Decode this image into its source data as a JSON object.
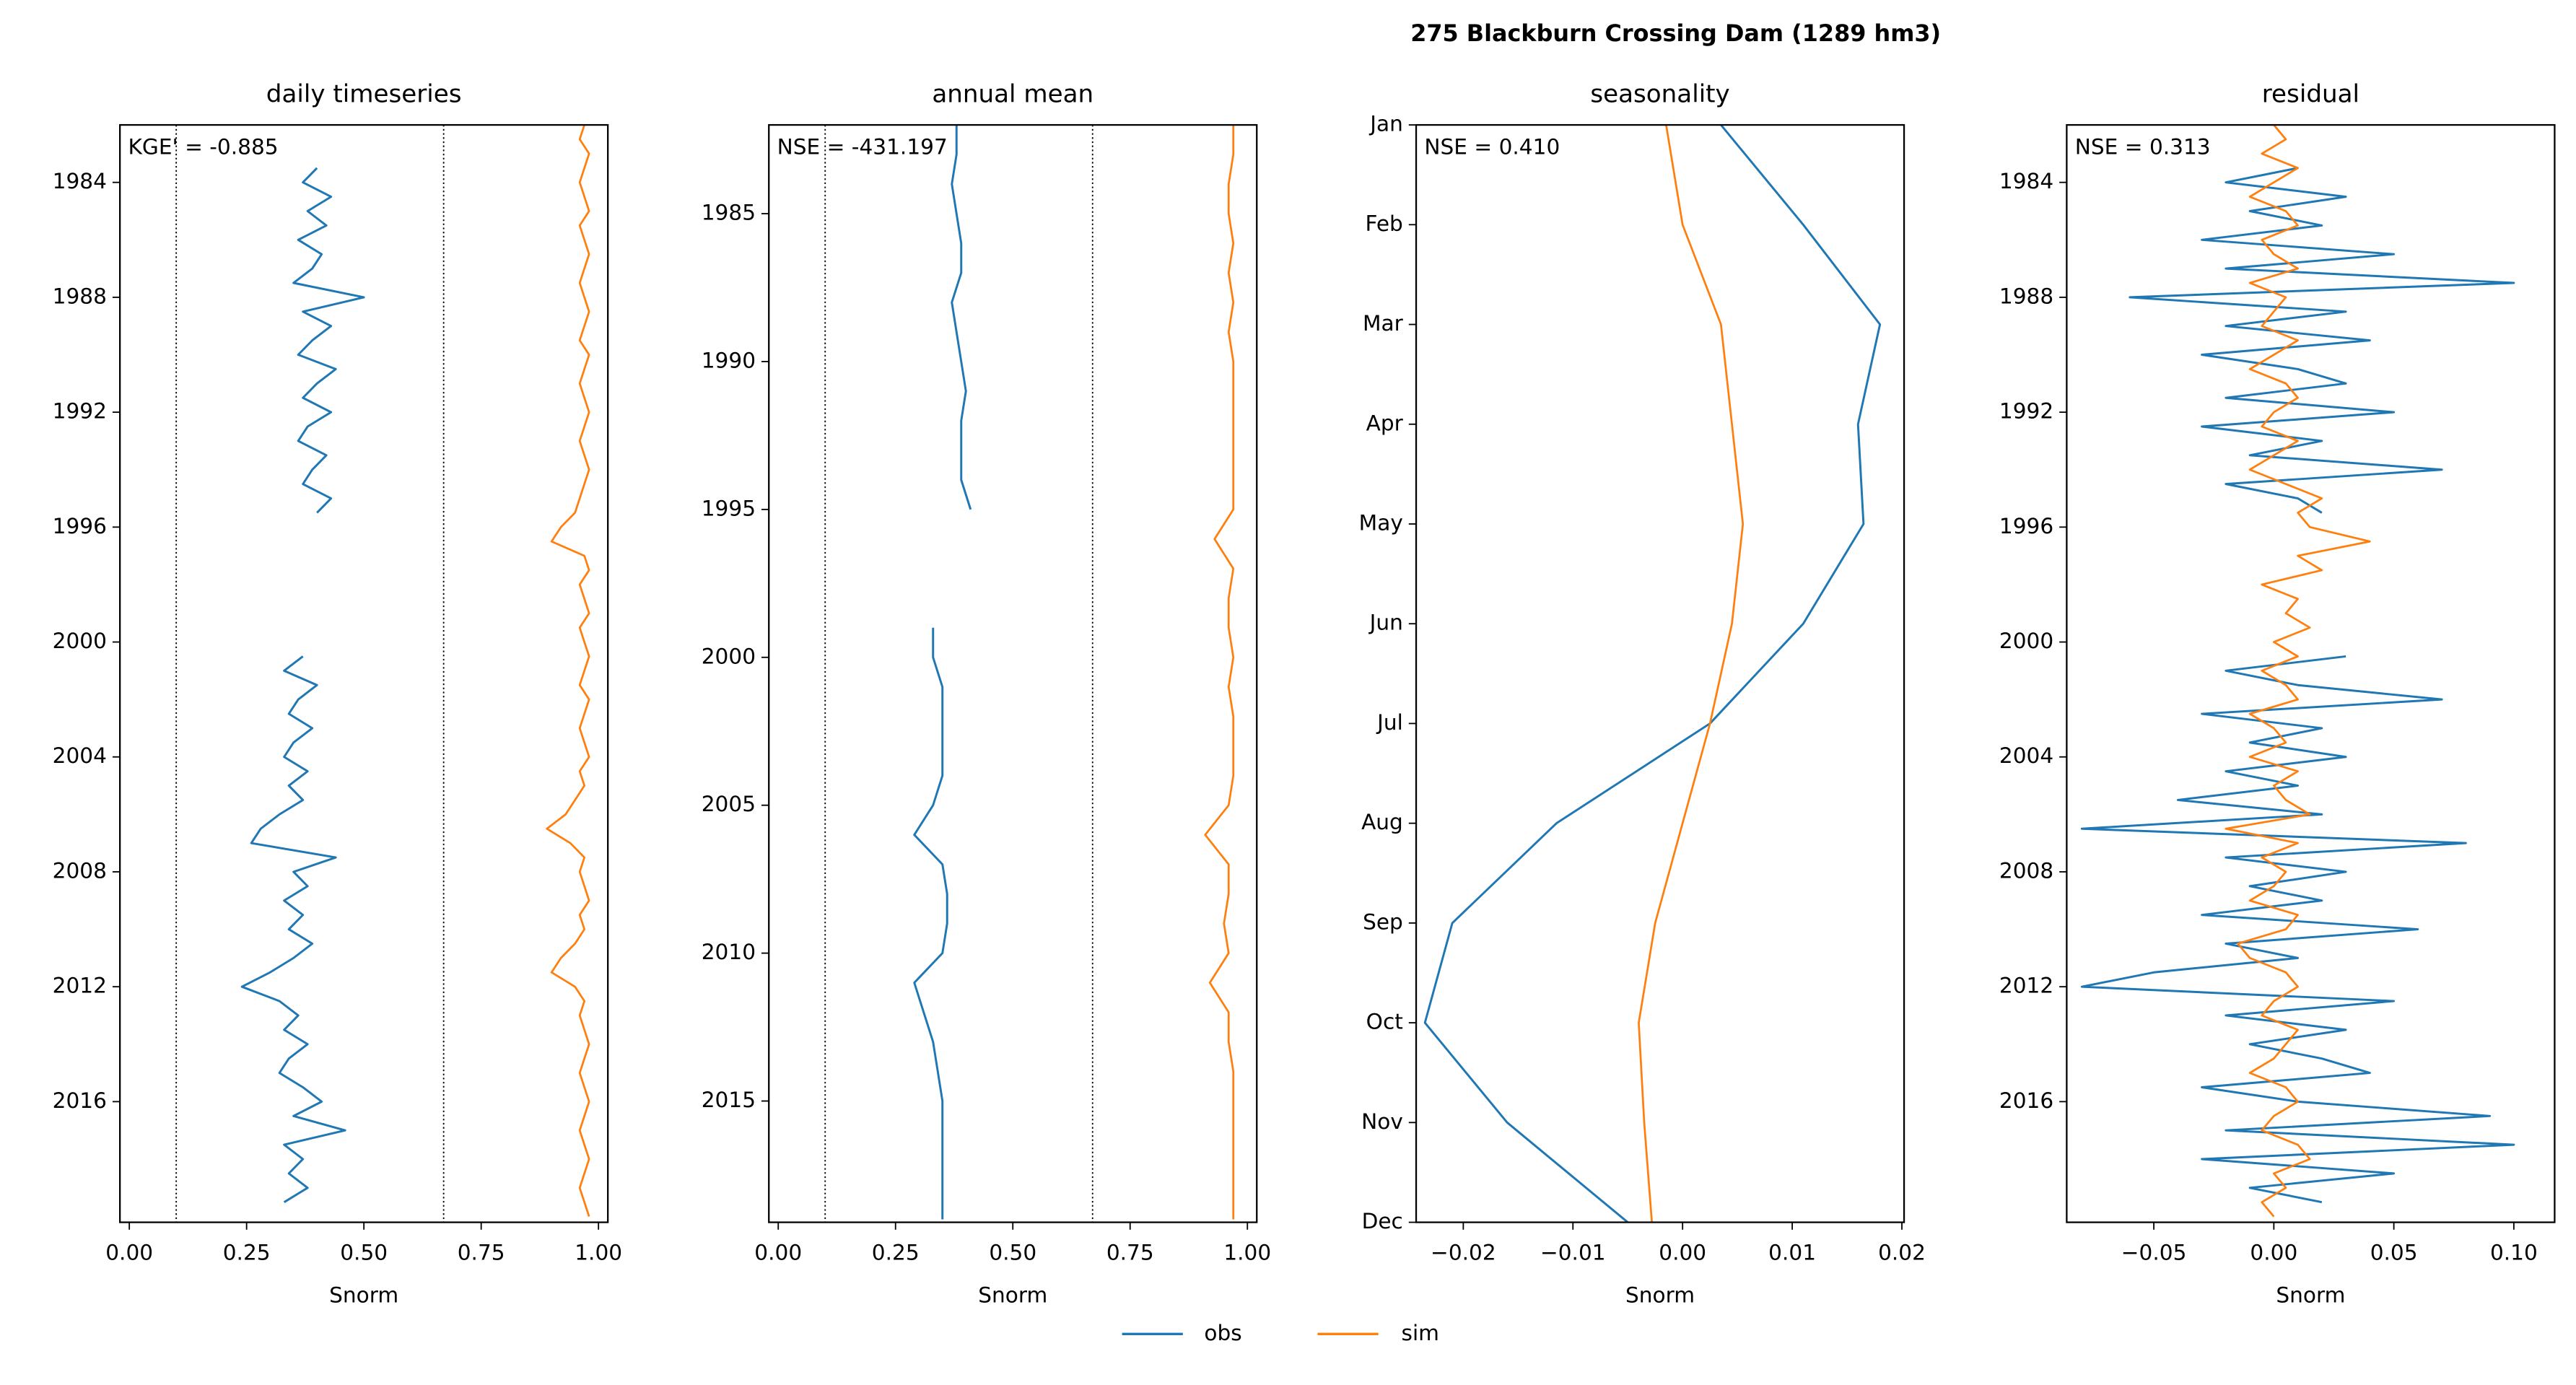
{
  "title": "275  Blackburn Crossing Dam (1289 hm3)",
  "chart_data": [
    {
      "type": "line",
      "title": "daily timeseries",
      "xlabel": "Snorm",
      "annotation": "KGE' = -0.885",
      "xlim": [
        -0.02,
        1.02
      ],
      "xticks": [
        {
          "value": 0,
          "label": "0.00"
        },
        {
          "value": 0.25,
          "label": "0.25"
        },
        {
          "value": 0.5,
          "label": "0.50"
        },
        {
          "value": 0.75,
          "label": "0.75"
        },
        {
          "value": 1,
          "label": "1.00"
        }
      ],
      "ylim": [
        1982,
        2020.2
      ],
      "yticks": [
        1984,
        1988,
        1992,
        1996,
        2000,
        2004,
        2008,
        2012,
        2016
      ],
      "invert_y": true,
      "vlines": [
        0.1,
        0.67
      ],
      "y": [
        1982,
        1982.5,
        1983,
        1983.5,
        1984,
        1984.5,
        1985,
        1985.5,
        1986,
        1986.5,
        1987,
        1987.5,
        1988,
        1988.5,
        1989,
        1989.5,
        1990,
        1990.5,
        1991,
        1991.5,
        1992,
        1992.5,
        1993,
        1993.5,
        1994,
        1994.5,
        1995,
        1995.5,
        1996,
        1996.5,
        1997,
        1997.5,
        1998,
        1998.5,
        1999,
        1999.5,
        2000,
        2000.5,
        2001,
        2001.5,
        2002,
        2002.5,
        2003,
        2003.5,
        2004,
        2004.5,
        2005,
        2005.5,
        2006,
        2006.5,
        2007,
        2007.5,
        2008,
        2008.5,
        2009,
        2009.5,
        2010,
        2010.5,
        2011,
        2011.5,
        2012,
        2012.5,
        2013,
        2013.5,
        2014,
        2014.5,
        2015,
        2015.5,
        2016,
        2016.5,
        2017,
        2017.5,
        2018,
        2018.5,
        2019,
        2019.5,
        2020
      ],
      "series": [
        {
          "name": "obs",
          "color": "#1f77b4",
          "values": [
            null,
            null,
            null,
            0.4,
            0.37,
            0.43,
            0.38,
            0.42,
            0.36,
            0.41,
            0.39,
            0.35,
            0.5,
            0.37,
            0.43,
            0.39,
            0.36,
            0.44,
            0.4,
            0.37,
            0.43,
            0.38,
            0.36,
            0.42,
            0.39,
            0.37,
            0.43,
            0.4,
            null,
            null,
            null,
            null,
            null,
            null,
            null,
            null,
            null,
            0.37,
            0.33,
            0.4,
            0.36,
            0.34,
            0.39,
            0.35,
            0.33,
            0.38,
            0.34,
            0.37,
            0.32,
            0.28,
            0.26,
            0.44,
            0.35,
            0.38,
            0.33,
            0.37,
            0.34,
            0.39,
            0.35,
            0.3,
            0.24,
            0.32,
            0.36,
            0.33,
            0.38,
            0.34,
            0.32,
            0.37,
            0.41,
            0.35,
            0.46,
            0.33,
            0.37,
            0.34,
            0.38,
            0.33,
            null
          ]
        },
        {
          "name": "sim",
          "color": "#ff7f0e",
          "values": [
            0.97,
            0.96,
            0.98,
            0.97,
            0.96,
            0.97,
            0.98,
            0.96,
            0.97,
            0.98,
            0.97,
            0.96,
            0.97,
            0.98,
            0.97,
            0.96,
            0.98,
            0.97,
            0.96,
            0.97,
            0.98,
            0.97,
            0.96,
            0.97,
            0.98,
            0.97,
            0.96,
            0.95,
            0.92,
            0.9,
            0.97,
            0.98,
            0.96,
            0.97,
            0.98,
            0.96,
            0.97,
            0.98,
            0.97,
            0.96,
            0.98,
            0.97,
            0.96,
            0.97,
            0.98,
            0.96,
            0.97,
            0.95,
            0.93,
            0.89,
            0.94,
            0.97,
            0.96,
            0.97,
            0.98,
            0.96,
            0.97,
            0.95,
            0.92,
            0.9,
            0.95,
            0.97,
            0.96,
            0.97,
            0.98,
            0.97,
            0.96,
            0.97,
            0.98,
            0.97,
            0.96,
            0.97,
            0.98,
            0.97,
            0.96,
            0.97,
            0.98
          ]
        }
      ]
    },
    {
      "type": "line",
      "title": "annual mean",
      "xlabel": "Snorm",
      "annotation": "NSE = -431.197",
      "xlim": [
        -0.02,
        1.02
      ],
      "xticks": [
        {
          "value": 0,
          "label": "0.00"
        },
        {
          "value": 0.25,
          "label": "0.25"
        },
        {
          "value": 0.5,
          "label": "0.50"
        },
        {
          "value": 0.75,
          "label": "0.75"
        },
        {
          "value": 1,
          "label": "1.00"
        }
      ],
      "ylim": [
        1982,
        2019.1
      ],
      "yticks": [
        1985,
        1990,
        1995,
        2000,
        2005,
        2010,
        2015
      ],
      "invert_y": true,
      "vlines": [
        0.1,
        0.67
      ],
      "y": [
        1982,
        1983,
        1984,
        1985,
        1986,
        1987,
        1988,
        1989,
        1990,
        1991,
        1992,
        1993,
        1994,
        1995,
        1996,
        1997,
        1998,
        1999,
        2000,
        2001,
        2002,
        2003,
        2004,
        2005,
        2006,
        2007,
        2008,
        2009,
        2010,
        2011,
        2012,
        2013,
        2014,
        2015,
        2016,
        2017,
        2018,
        2019
      ],
      "series": [
        {
          "name": "obs",
          "color": "#1f77b4",
          "values": [
            0.38,
            0.38,
            0.37,
            0.38,
            0.39,
            0.39,
            0.37,
            0.38,
            0.39,
            0.4,
            0.39,
            0.39,
            0.39,
            0.41,
            null,
            null,
            null,
            0.33,
            0.33,
            0.35,
            0.35,
            0.35,
            0.35,
            0.33,
            0.29,
            0.35,
            0.36,
            0.36,
            0.35,
            0.29,
            0.31,
            0.33,
            0.34,
            0.35,
            0.35,
            0.35,
            0.35,
            0.35
          ]
        },
        {
          "name": "sim",
          "color": "#ff7f0e",
          "values": [
            0.97,
            0.97,
            0.96,
            0.96,
            0.97,
            0.96,
            0.97,
            0.96,
            0.97,
            0.97,
            0.97,
            0.97,
            0.97,
            0.97,
            0.93,
            0.97,
            0.96,
            0.96,
            0.97,
            0.96,
            0.97,
            0.97,
            0.97,
            0.96,
            0.91,
            0.96,
            0.96,
            0.95,
            0.96,
            0.92,
            0.96,
            0.96,
            0.97,
            0.97,
            0.97,
            0.97,
            0.97,
            0.97
          ]
        }
      ]
    },
    {
      "type": "line",
      "title": "seasonality",
      "xlabel": "Snorm",
      "annotation": "NSE = 0.410",
      "xlim": [
        -0.0243,
        0.0202
      ],
      "xticks": [
        {
          "value": -0.02,
          "label": "−0.02"
        },
        {
          "value": -0.01,
          "label": "−0.01"
        },
        {
          "value": 0,
          "label": "0.00"
        },
        0.01,
        0.02
      ],
      "categories": [
        "Jan",
        "Feb",
        "Mar",
        "Apr",
        "May",
        "Jun",
        "Jul",
        "Aug",
        "Sep",
        "Oct",
        "Nov",
        "Dec"
      ],
      "series": [
        {
          "name": "obs",
          "color": "#1f77b4",
          "values": [
            0.0035,
            0.011,
            0.018,
            0.016,
            0.0165,
            0.011,
            0.0025,
            -0.0115,
            -0.021,
            -0.0235,
            -0.016,
            -0.005
          ]
        },
        {
          "name": "sim",
          "color": "#ff7f0e",
          "values": [
            -0.0015,
            0.0,
            0.0035,
            0.0045,
            0.0055,
            0.0045,
            0.0025,
            0.0,
            -0.0025,
            -0.004,
            -0.0035,
            -0.0028
          ]
        }
      ]
    },
    {
      "type": "line",
      "title": "residual",
      "xlabel": "Snorm",
      "annotation": "NSE = 0.313",
      "xlim": [
        -0.0863,
        0.117
      ],
      "xticks": [
        {
          "value": -0.05,
          "label": "−0.05"
        },
        {
          "value": 0,
          "label": "0.00"
        },
        0.05,
        {
          "value": 0.1,
          "label": "0.10"
        }
      ],
      "ylim": [
        1982,
        2020.2
      ],
      "yticks": [
        1984,
        1988,
        1992,
        1996,
        2000,
        2004,
        2008,
        2012,
        2016
      ],
      "invert_y": true,
      "y": [
        1982,
        1982.5,
        1983,
        1983.5,
        1984,
        1984.5,
        1985,
        1985.5,
        1986,
        1986.5,
        1987,
        1987.5,
        1988,
        1988.5,
        1989,
        1989.5,
        1990,
        1990.5,
        1991,
        1991.5,
        1992,
        1992.5,
        1993,
        1993.5,
        1994,
        1994.5,
        1995,
        1995.5,
        1996,
        1996.5,
        1997,
        1997.5,
        1998,
        1998.5,
        1999,
        1999.5,
        2000,
        2000.5,
        2001,
        2001.5,
        2002,
        2002.5,
        2003,
        2003.5,
        2004,
        2004.5,
        2005,
        2005.5,
        2006,
        2006.5,
        2007,
        2007.5,
        2008,
        2008.5,
        2009,
        2009.5,
        2010,
        2010.5,
        2011,
        2011.5,
        2012,
        2012.5,
        2013,
        2013.5,
        2014,
        2014.5,
        2015,
        2015.5,
        2016,
        2016.5,
        2017,
        2017.5,
        2018,
        2018.5,
        2019,
        2019.5,
        2020
      ],
      "series": [
        {
          "name": "obs",
          "color": "#1f77b4",
          "values": [
            null,
            null,
            null,
            0.01,
            -0.02,
            0.03,
            -0.01,
            0.02,
            -0.03,
            0.05,
            -0.02,
            0.1,
            -0.06,
            0.03,
            -0.02,
            0.04,
            -0.03,
            0.01,
            0.03,
            -0.02,
            0.05,
            -0.03,
            0.02,
            -0.01,
            0.07,
            -0.02,
            0.01,
            0.02,
            null,
            null,
            null,
            null,
            null,
            null,
            null,
            null,
            null,
            0.03,
            -0.02,
            0.01,
            0.07,
            -0.03,
            0.02,
            -0.01,
            0.03,
            -0.02,
            0.01,
            -0.04,
            0.02,
            -0.08,
            0.08,
            -0.02,
            0.03,
            -0.01,
            0.02,
            -0.03,
            0.06,
            -0.02,
            0.01,
            -0.05,
            -0.08,
            0.05,
            -0.02,
            0.03,
            -0.01,
            0.02,
            0.04,
            -0.03,
            0.01,
            0.09,
            -0.02,
            0.1,
            -0.03,
            0.05,
            -0.01,
            0.02,
            null
          ]
        },
        {
          "name": "sim",
          "color": "#ff7f0e",
          "values": [
            0,
            0.005,
            -0.005,
            0.01,
            0,
            -0.01,
            0.005,
            0.01,
            -0.005,
            0,
            0.01,
            -0.01,
            0.005,
            0,
            -0.005,
            0.01,
            0,
            -0.01,
            0.005,
            0.01,
            0,
            -0.005,
            0.01,
            0,
            -0.01,
            0.005,
            0.02,
            0.01,
            0.015,
            0.04,
            0.01,
            0.02,
            -0.005,
            0.01,
            0.005,
            0.015,
            0,
            0.01,
            -0.005,
            0.005,
            0.01,
            -0.01,
            0,
            0.005,
            -0.01,
            0.01,
            0,
            0.005,
            0.015,
            -0.02,
            0.01,
            -0.005,
            0.005,
            0,
            -0.01,
            0.01,
            0.005,
            -0.015,
            -0.01,
            0.005,
            0.01,
            0,
            -0.005,
            0.01,
            0.005,
            0,
            -0.01,
            0.005,
            0.01,
            0,
            -0.005,
            0.01,
            0.015,
            0,
            0.005,
            -0.005,
            0
          ]
        }
      ]
    }
  ]
}
